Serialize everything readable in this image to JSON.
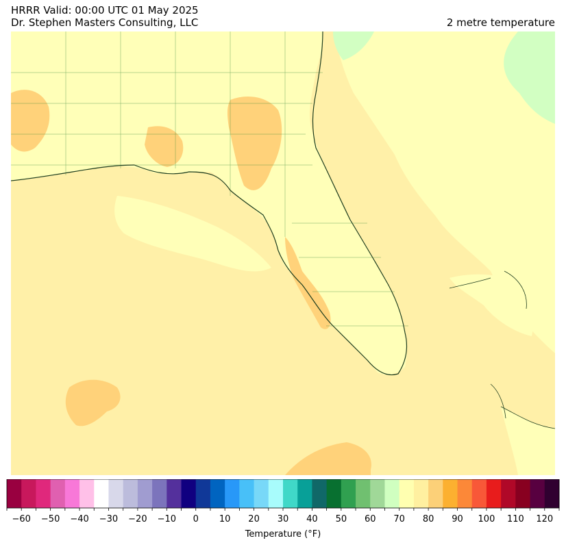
{
  "header": {
    "line1": "HRRR Valid: 00:00 UTC 01 May 2025",
    "line2": "Dr. Stephen Masters Consulting, LLC",
    "variable": "2 metre temperature"
  },
  "colorbar": {
    "label": "Temperature (°F)",
    "min": -65,
    "max": 125,
    "step": 5,
    "tick_labels": [
      "−60",
      "−50",
      "−40",
      "−30",
      "−20",
      "−10",
      "0",
      "10",
      "20",
      "30",
      "40",
      "50",
      "60",
      "70",
      "80",
      "90",
      "100",
      "110",
      "120"
    ],
    "colors": [
      "#990040",
      "#c8185c",
      "#e0287c",
      "#e060b0",
      "#f878d8",
      "#ffc0e8",
      "#ffffff",
      "#d8d8ea",
      "#bcbcdc",
      "#a09cd0",
      "#7c74bc",
      "#54309c",
      "#100080",
      "#103898",
      "#0064c0",
      "#2898f8",
      "#48c0f8",
      "#78d8f8",
      "#a8fcfc",
      "#40d8c8",
      "#08a098",
      "#106868",
      "#087030",
      "#30a050",
      "#70c070",
      "#a0d898",
      "#d0ffc0",
      "#ffffb0",
      "#fff0a0",
      "#fcd078",
      "#fcb030",
      "#fc8838",
      "#f85838",
      "#e81c1c",
      "#b00828",
      "#880020",
      "#580040",
      "#300030"
    ]
  },
  "map": {
    "ocean_color": "#fff0a8",
    "land_color": "#ffffb8",
    "warm_color": "#ffd27a",
    "cool_color": "#d2ffc2",
    "temperature_range_f": [
      70,
      85
    ]
  }
}
